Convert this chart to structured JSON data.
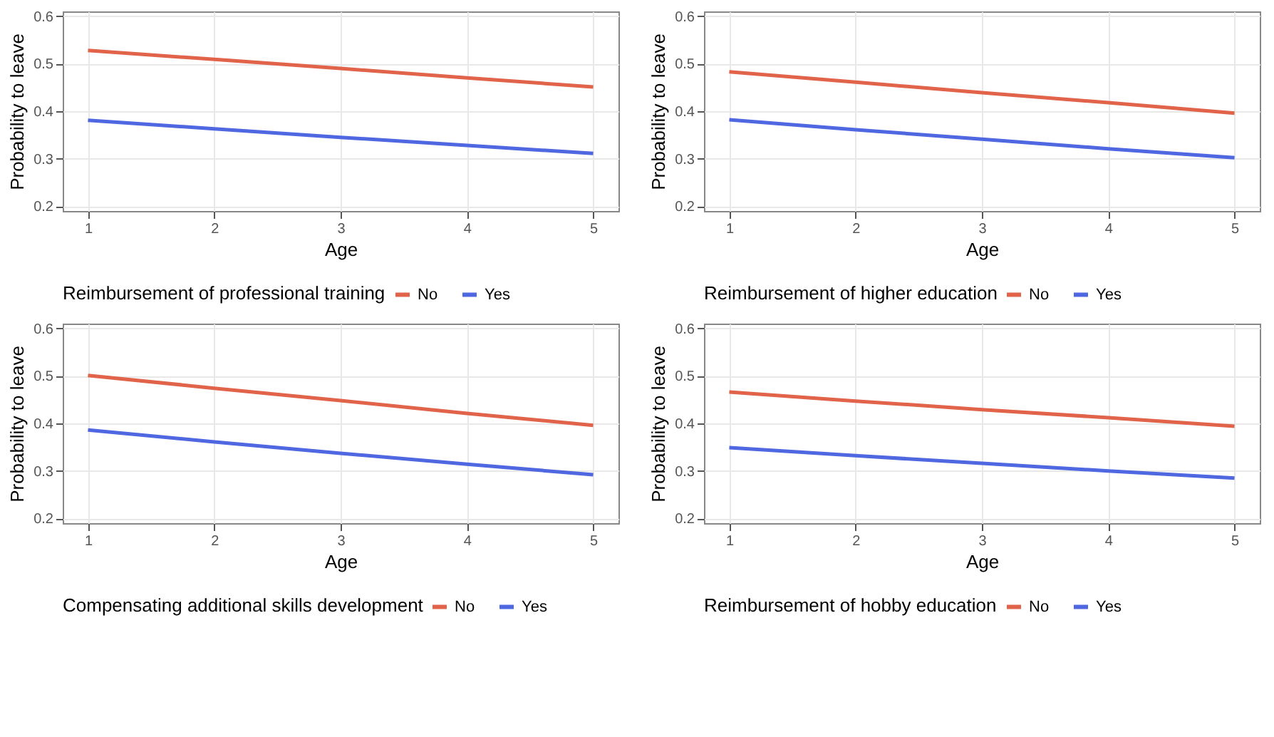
{
  "chart_data": [
    {
      "type": "line",
      "xlabel": "Age",
      "ylabel": "Probability to leave",
      "legend_title": "Reimbursement of professional training",
      "legend": "bottom",
      "grid": true,
      "x": [
        1,
        2,
        3,
        4,
        5
      ],
      "xlim": [
        0.8,
        5.2
      ],
      "ylim": [
        0.19,
        0.61
      ],
      "xticks": [
        1,
        2,
        3,
        4,
        5
      ],
      "yticks": [
        0.2,
        0.3,
        0.4,
        0.5,
        0.6
      ],
      "series": [
        {
          "name": "No",
          "color": "#e0634a",
          "values": [
            0.528,
            0.509,
            0.49,
            0.47,
            0.451
          ]
        },
        {
          "name": "Yes",
          "color": "#4f67e0",
          "values": [
            0.381,
            0.363,
            0.345,
            0.328,
            0.311
          ]
        }
      ]
    },
    {
      "type": "line",
      "xlabel": "Age",
      "ylabel": "Probability to leave",
      "legend_title": "Reimbursement of higher education",
      "legend": "bottom",
      "grid": true,
      "x": [
        1,
        2,
        3,
        4,
        5
      ],
      "xlim": [
        0.8,
        5.2
      ],
      "ylim": [
        0.19,
        0.61
      ],
      "xticks": [
        1,
        2,
        3,
        4,
        5
      ],
      "yticks": [
        0.2,
        0.3,
        0.4,
        0.5,
        0.6
      ],
      "series": [
        {
          "name": "No",
          "color": "#e0634a",
          "values": [
            0.483,
            0.461,
            0.439,
            0.418,
            0.396
          ]
        },
        {
          "name": "Yes",
          "color": "#4f67e0",
          "values": [
            0.382,
            0.361,
            0.341,
            0.321,
            0.302
          ]
        }
      ]
    },
    {
      "type": "line",
      "xlabel": "Age",
      "ylabel": "Probability to leave",
      "legend_title": "Compensating additional skills development",
      "legend": "bottom",
      "grid": true,
      "x": [
        1,
        2,
        3,
        4,
        5
      ],
      "xlim": [
        0.8,
        5.2
      ],
      "ylim": [
        0.19,
        0.61
      ],
      "xticks": [
        1,
        2,
        3,
        4,
        5
      ],
      "yticks": [
        0.2,
        0.3,
        0.4,
        0.5,
        0.6
      ],
      "series": [
        {
          "name": "No",
          "color": "#e0634a",
          "values": [
            0.501,
            0.474,
            0.448,
            0.421,
            0.396
          ]
        },
        {
          "name": "Yes",
          "color": "#4f67e0",
          "values": [
            0.386,
            0.361,
            0.337,
            0.314,
            0.292
          ]
        }
      ]
    },
    {
      "type": "line",
      "xlabel": "Age",
      "ylabel": "Probability to leave",
      "legend_title": "Reimbursement of hobby education",
      "legend": "bottom",
      "grid": true,
      "x": [
        1,
        2,
        3,
        4,
        5
      ],
      "xlim": [
        0.8,
        5.2
      ],
      "ylim": [
        0.19,
        0.61
      ],
      "xticks": [
        1,
        2,
        3,
        4,
        5
      ],
      "yticks": [
        0.2,
        0.3,
        0.4,
        0.5,
        0.6
      ],
      "series": [
        {
          "name": "No",
          "color": "#e0634a",
          "values": [
            0.466,
            0.447,
            0.429,
            0.412,
            0.394
          ]
        },
        {
          "name": "Yes",
          "color": "#4f67e0",
          "values": [
            0.349,
            0.332,
            0.316,
            0.3,
            0.285
          ]
        }
      ]
    }
  ]
}
